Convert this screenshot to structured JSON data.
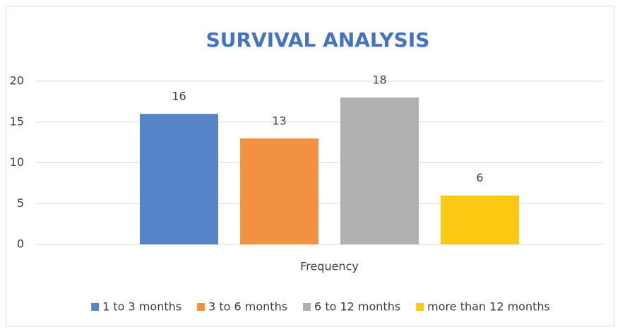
{
  "chart_data": {
    "type": "bar",
    "title": "SURVIVAL ANALYSIS",
    "categories": [
      "Frequency"
    ],
    "series": [
      {
        "name": "1 to 3 months",
        "color": "#5585c8",
        "values": [
          16
        ]
      },
      {
        "name": "3 to 6 months",
        "color": "#f29140",
        "values": [
          13
        ]
      },
      {
        "name": "6 to 12 months",
        "color": "#b0b0b0",
        "values": [
          18
        ]
      },
      {
        "name": "more than 12 months",
        "color": "#fdc811",
        "values": [
          6
        ]
      }
    ],
    "ylim": [
      0,
      20
    ],
    "yticks": [
      0,
      5,
      10,
      15,
      20
    ],
    "grid": true,
    "legend": "bottom"
  }
}
